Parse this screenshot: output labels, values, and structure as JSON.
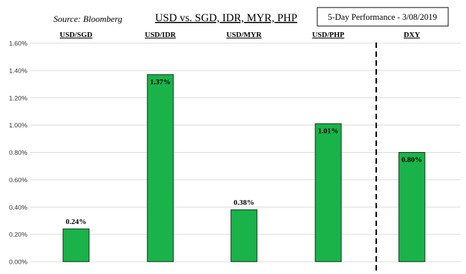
{
  "chart_data": {
    "type": "bar",
    "title": "USD vs. SGD, IDR, MYR, PHP",
    "source": "Source: Bloomberg",
    "subtitle": "5-Day Performance - 3/08/2019",
    "categories": [
      "USD/SGD",
      "USD/IDR",
      "USD/MYR",
      "USD/PHP",
      "DXY"
    ],
    "values": [
      0.24,
      1.37,
      0.38,
      1.01,
      0.8
    ],
    "data_labels": [
      "0.24%",
      "1.37%",
      "0.38%",
      "1.01%",
      "0.80%"
    ],
    "y_ticks": [
      "0.00%",
      "0.20%",
      "0.40%",
      "0.60%",
      "0.80%",
      "1.00%",
      "1.20%",
      "1.40%",
      "1.60%"
    ],
    "ylim": [
      0,
      1.6
    ],
    "xlabel": "",
    "ylabel": "",
    "grid": true,
    "separator_before_index": 4,
    "colors": {
      "bar_fill": "#19b34a",
      "bar_stroke": "#0d2a12",
      "grid": "#d9d9d9"
    }
  }
}
